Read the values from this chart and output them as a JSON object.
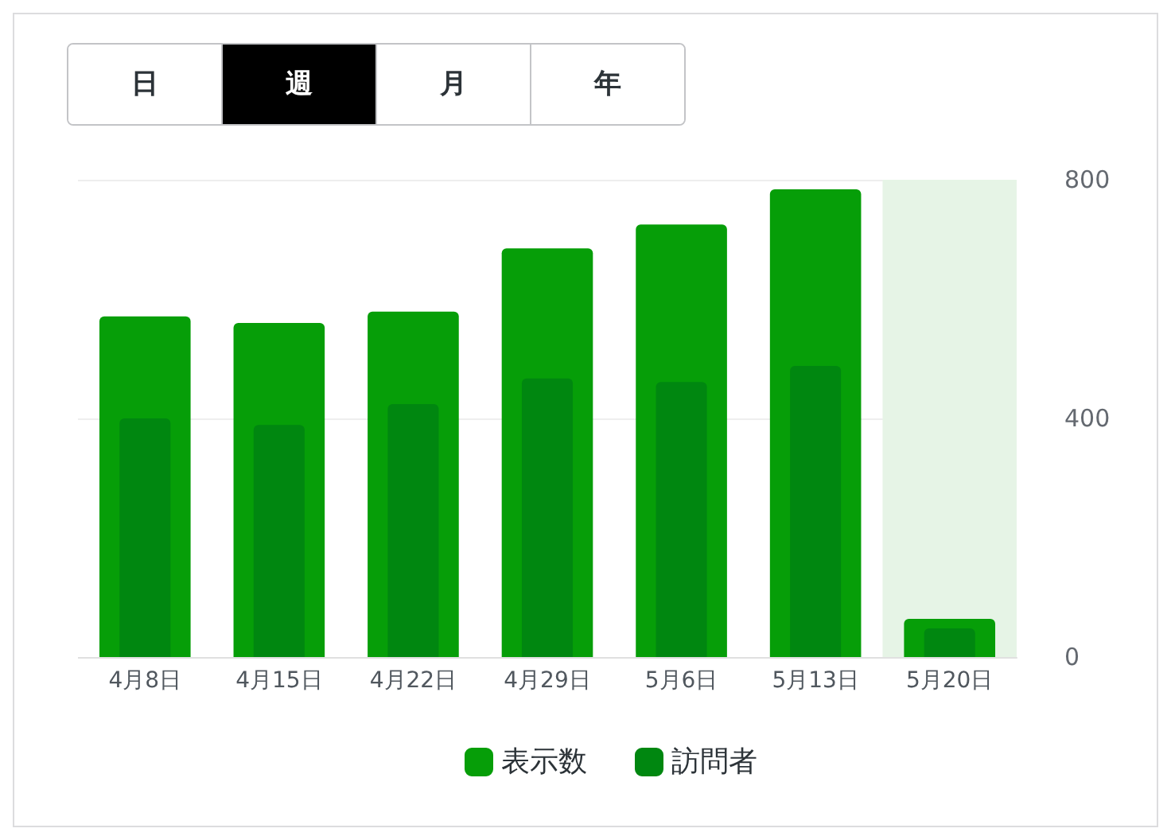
{
  "chart_data": {
    "type": "bar",
    "categories": [
      "4月8日",
      "4月15日",
      "4月22日",
      "4月29日",
      "5月6日",
      "5月13日",
      "5月20日"
    ],
    "series": [
      {
        "name": "表示数",
        "color": "#069e08",
        "values": [
          571,
          560,
          579,
          685,
          725,
          784,
          64
        ]
      },
      {
        "name": "訪問者",
        "color": "#008710",
        "values": [
          400,
          389,
          424,
          467,
          461,
          488,
          48
        ]
      }
    ],
    "ylim": [
      0,
      800
    ],
    "yticks": [
      0,
      400,
      800
    ],
    "grid": "y",
    "legend": "bottom",
    "bands": [
      {
        "axis": "x",
        "from": "5月20日",
        "to": "5月20日",
        "color": "#e6f4e6"
      }
    ],
    "annotations": [
      "日",
      "週",
      "月",
      "年"
    ]
  }
}
